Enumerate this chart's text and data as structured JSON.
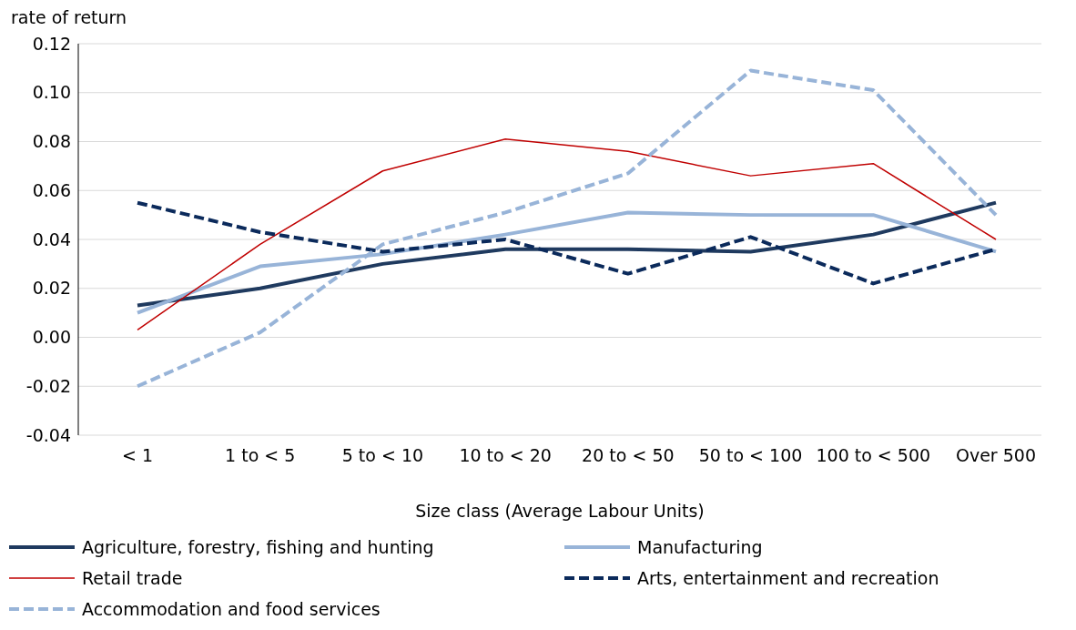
{
  "chart_data": {
    "type": "line",
    "ylabel": "rate of return",
    "xlabel": "Size class (Average Labour Units)",
    "categories": [
      "< 1",
      "1 to < 5",
      "5 to < 10",
      "10 to < 20",
      "20 to < 50",
      "50 to < 100",
      "100 to < 500",
      "Over 500"
    ],
    "series": [
      {
        "name": "Agriculture, forestry, fishing and hunting",
        "color": "#1f3a5f",
        "line_style": "solid",
        "values": [
          0.013,
          0.02,
          0.03,
          0.036,
          0.036,
          0.035,
          0.042,
          0.055
        ]
      },
      {
        "name": "Manufacturing",
        "color": "#98b4d8",
        "line_style": "solid",
        "values": [
          0.01,
          0.029,
          0.034,
          0.042,
          0.051,
          0.05,
          0.05,
          0.035
        ]
      },
      {
        "name": "Retail trade",
        "color": "#c00000",
        "line_style": "solid",
        "values": [
          0.003,
          0.038,
          0.068,
          0.081,
          0.076,
          0.066,
          0.071,
          0.04
        ]
      },
      {
        "name": "Arts, entertainment and recreation",
        "color": "#0b2a5b",
        "line_style": "dashed",
        "values": [
          0.055,
          0.043,
          0.035,
          0.04,
          0.026,
          0.041,
          0.022,
          0.036
        ]
      },
      {
        "name": "Accommodation and food services",
        "color": "#98b4d8",
        "line_style": "dashed",
        "values": [
          -0.02,
          0.002,
          0.038,
          0.051,
          0.067,
          0.109,
          0.101,
          0.05
        ]
      }
    ],
    "ylim": [
      -0.04,
      0.12
    ],
    "yticks": [
      {
        "value": -0.04,
        "label": "-0.04"
      },
      {
        "value": -0.02,
        "label": "-0.02"
      },
      {
        "value": 0,
        "label": "0.00"
      },
      {
        "value": 0.02,
        "label": "0.02"
      },
      {
        "value": 0.04,
        "label": "0.04"
      },
      {
        "value": 0.06,
        "label": "0.06"
      },
      {
        "value": 0.08,
        "label": "0.08"
      },
      {
        "value": 0.1,
        "label": "0.10"
      },
      {
        "value": 0.12,
        "label": "0.12"
      }
    ],
    "grid": "y",
    "legend": "bottom",
    "marker": "none"
  }
}
